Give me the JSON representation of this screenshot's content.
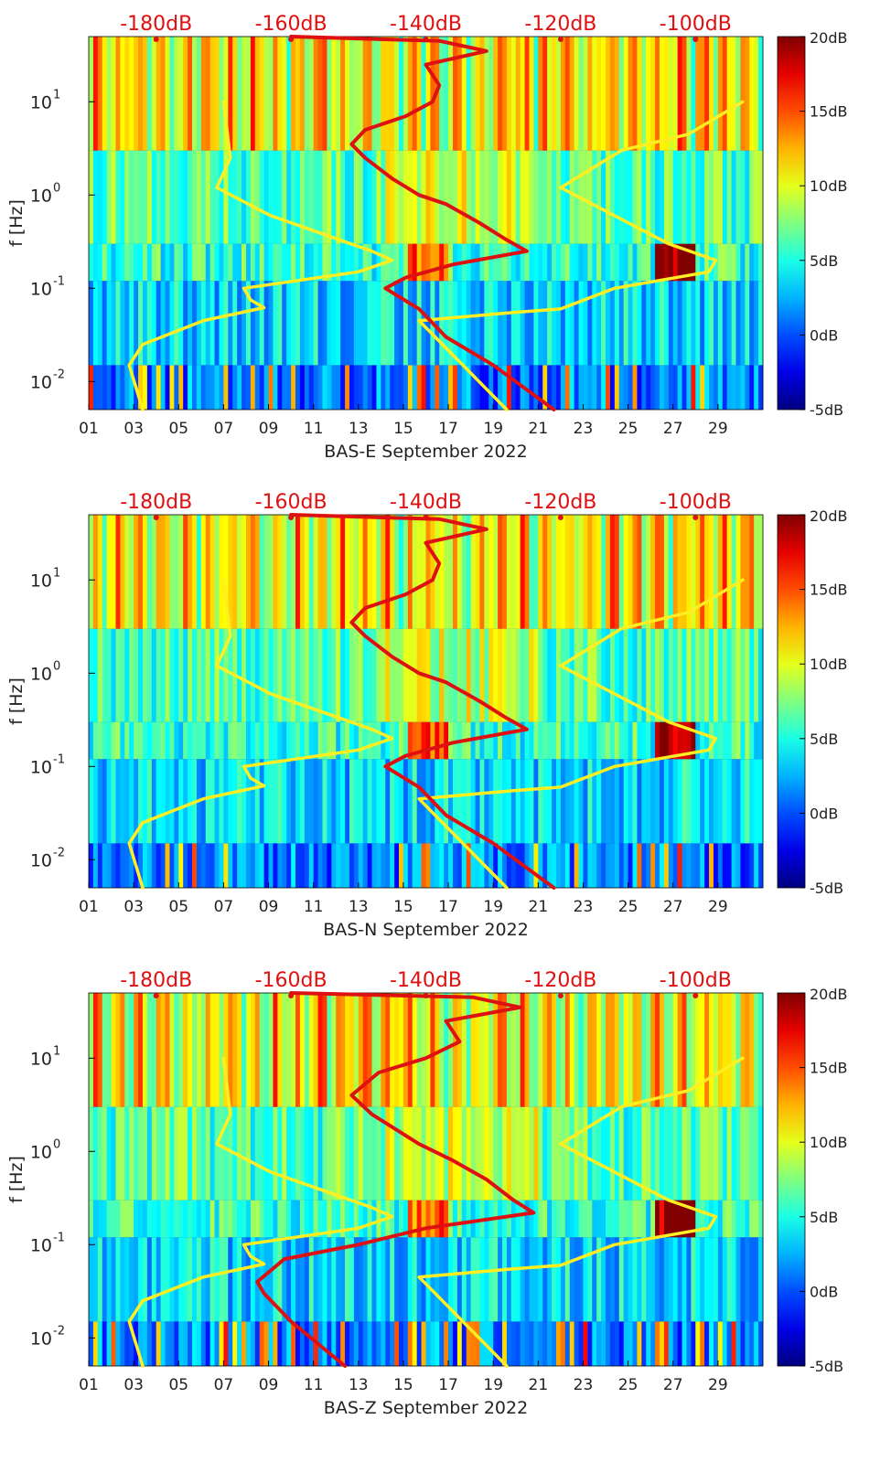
{
  "figure": {
    "background": "#ffffff"
  },
  "chart_data": [
    {
      "type": "heatmap",
      "title": "",
      "xlabel": "BAS-E September 2022",
      "ylabel": "f [Hz]",
      "x_ticks": [
        "01",
        "03",
        "05",
        "07",
        "09",
        "11",
        "13",
        "15",
        "17",
        "19",
        "21",
        "23",
        "25",
        "27",
        "29"
      ],
      "x_range_days": [
        1,
        31
      ],
      "y_scale": "log",
      "y_range_hz": [
        0.005,
        50
      ],
      "y_ticks": [
        {
          "value": 0.01,
          "base": "10",
          "exp": "-2"
        },
        {
          "value": 0.1,
          "base": "10",
          "exp": "-1"
        },
        {
          "value": 1,
          "base": "10",
          "exp": "0"
        },
        {
          "value": 10,
          "base": "10",
          "exp": "1"
        }
      ],
      "top_axis_labels": [
        "-180dB",
        "-160dB",
        "-140dB",
        "-120dB",
        "-100dB"
      ],
      "top_axis_range_db": [
        -190,
        -90
      ],
      "colorbar": {
        "ticks": [
          "-5dB",
          "0dB",
          "5dB",
          "10dB",
          "15dB",
          "20dB"
        ],
        "range_db": [
          -5,
          20
        ],
        "colormap": "jet"
      },
      "overlay_series": [
        {
          "name": "yellow-model-curve",
          "color": "#ffee22",
          "points_db_hz": [
            [
              -182,
              0.005
            ],
            [
              -184,
              0.015
            ],
            [
              -182,
              0.025
            ],
            [
              -173,
              0.045
            ],
            [
              -164,
              0.062
            ],
            [
              -166,
              0.075
            ],
            [
              -167,
              0.1
            ],
            [
              -150,
              0.15
            ],
            [
              -145,
              0.2
            ],
            [
              -148,
              0.25
            ],
            [
              -163,
              0.6
            ],
            [
              -171,
              1.2
            ],
            [
              -169,
              2.5
            ],
            [
              -170,
              10
            ]
          ]
        },
        {
          "name": "yellow-model-curve-right",
          "color": "#ffee22",
          "points_db_hz": [
            [
              -128,
              0.005
            ],
            [
              -141,
              0.045
            ],
            [
              -127,
              0.055
            ],
            [
              -120,
              0.06
            ],
            [
              -112,
              0.1
            ],
            [
              -98,
              0.15
            ],
            [
              -97,
              0.2
            ],
            [
              -104,
              0.3
            ],
            [
              -120,
              1.2
            ],
            [
              -111,
              3
            ],
            [
              -101,
              4.5
            ],
            [
              -93,
              10
            ]
          ]
        },
        {
          "name": "red-measured-psd",
          "color": "#dd1111",
          "points_db_hz": [
            [
              -121,
              0.005
            ],
            [
              -130,
              0.015
            ],
            [
              -137,
              0.03
            ],
            [
              -141,
              0.06
            ],
            [
              -146,
              0.1
            ],
            [
              -143,
              0.13
            ],
            [
              -136,
              0.18
            ],
            [
              -125,
              0.25
            ],
            [
              -128,
              0.33
            ],
            [
              -132,
              0.5
            ],
            [
              -137,
              0.8
            ],
            [
              -141,
              1.0
            ],
            [
              -145,
              1.5
            ],
            [
              -149,
              2.5
            ],
            [
              -151,
              3.5
            ],
            [
              -149,
              5
            ],
            [
              -143,
              7
            ],
            [
              -139,
              10
            ],
            [
              -138,
              15
            ],
            [
              -140,
              25
            ],
            [
              -131,
              35
            ],
            [
              -138,
              45
            ],
            [
              -160,
              50
            ]
          ]
        }
      ]
    },
    {
      "type": "heatmap",
      "title": "",
      "xlabel": "BAS-N September 2022",
      "ylabel": "f [Hz]",
      "x_ticks": [
        "01",
        "03",
        "05",
        "07",
        "09",
        "11",
        "13",
        "15",
        "17",
        "19",
        "21",
        "23",
        "25",
        "27",
        "29"
      ],
      "x_range_days": [
        1,
        31
      ],
      "y_scale": "log",
      "y_range_hz": [
        0.005,
        50
      ],
      "y_ticks": [
        {
          "value": 0.01,
          "base": "10",
          "exp": "-2"
        },
        {
          "value": 0.1,
          "base": "10",
          "exp": "-1"
        },
        {
          "value": 1,
          "base": "10",
          "exp": "0"
        },
        {
          "value": 10,
          "base": "10",
          "exp": "1"
        }
      ],
      "top_axis_labels": [
        "-180dB",
        "-160dB",
        "-140dB",
        "-120dB",
        "-100dB"
      ],
      "top_axis_range_db": [
        -190,
        -90
      ],
      "colorbar": {
        "ticks": [
          "-5dB",
          "0dB",
          "5dB",
          "10dB",
          "15dB",
          "20dB"
        ],
        "range_db": [
          -5,
          20
        ],
        "colormap": "jet"
      },
      "overlay_series": [
        {
          "name": "yellow-model-curve",
          "color": "#ffee22",
          "points_db_hz": [
            [
              -182,
              0.005
            ],
            [
              -184,
              0.015
            ],
            [
              -182,
              0.025
            ],
            [
              -173,
              0.045
            ],
            [
              -164,
              0.062
            ],
            [
              -166,
              0.075
            ],
            [
              -167,
              0.1
            ],
            [
              -150,
              0.15
            ],
            [
              -145,
              0.2
            ],
            [
              -148,
              0.25
            ],
            [
              -163,
              0.6
            ],
            [
              -171,
              1.2
            ],
            [
              -169,
              2.5
            ],
            [
              -170,
              10
            ]
          ]
        },
        {
          "name": "yellow-model-curve-right",
          "color": "#ffee22",
          "points_db_hz": [
            [
              -128,
              0.005
            ],
            [
              -141,
              0.045
            ],
            [
              -127,
              0.055
            ],
            [
              -120,
              0.06
            ],
            [
              -112,
              0.1
            ],
            [
              -98,
              0.15
            ],
            [
              -97,
              0.2
            ],
            [
              -104,
              0.3
            ],
            [
              -120,
              1.2
            ],
            [
              -111,
              3
            ],
            [
              -101,
              4.5
            ],
            [
              -93,
              10
            ]
          ]
        },
        {
          "name": "red-measured-psd",
          "color": "#dd1111",
          "points_db_hz": [
            [
              -121,
              0.005
            ],
            [
              -130,
              0.015
            ],
            [
              -137,
              0.03
            ],
            [
              -141,
              0.06
            ],
            [
              -146,
              0.1
            ],
            [
              -143,
              0.13
            ],
            [
              -136,
              0.18
            ],
            [
              -125,
              0.25
            ],
            [
              -128,
              0.33
            ],
            [
              -132,
              0.5
            ],
            [
              -137,
              0.8
            ],
            [
              -141,
              1.0
            ],
            [
              -145,
              1.5
            ],
            [
              -149,
              2.5
            ],
            [
              -151,
              3.5
            ],
            [
              -149,
              5
            ],
            [
              -143,
              7
            ],
            [
              -139,
              10
            ],
            [
              -138,
              15
            ],
            [
              -140,
              25
            ],
            [
              -131,
              35
            ],
            [
              -138,
              45
            ],
            [
              -160,
              50
            ]
          ]
        }
      ]
    },
    {
      "type": "heatmap",
      "title": "",
      "xlabel": "BAS-Z September 2022",
      "ylabel": "f [Hz]",
      "x_ticks": [
        "01",
        "03",
        "05",
        "07",
        "09",
        "11",
        "13",
        "15",
        "17",
        "19",
        "21",
        "23",
        "25",
        "27",
        "29"
      ],
      "x_range_days": [
        1,
        31
      ],
      "y_scale": "log",
      "y_range_hz": [
        0.005,
        50
      ],
      "y_ticks": [
        {
          "value": 0.01,
          "base": "10",
          "exp": "-2"
        },
        {
          "value": 0.1,
          "base": "10",
          "exp": "-1"
        },
        {
          "value": 1,
          "base": "10",
          "exp": "0"
        },
        {
          "value": 10,
          "base": "10",
          "exp": "1"
        }
      ],
      "top_axis_labels": [
        "-180dB",
        "-160dB",
        "-140dB",
        "-120dB",
        "-100dB"
      ],
      "top_axis_range_db": [
        -190,
        -90
      ],
      "colorbar": {
        "ticks": [
          "-5dB",
          "0dB",
          "5dB",
          "10dB",
          "15dB",
          "20dB"
        ],
        "range_db": [
          -5,
          20
        ],
        "colormap": "jet"
      },
      "overlay_series": [
        {
          "name": "yellow-model-curve",
          "color": "#ffee22",
          "points_db_hz": [
            [
              -182,
              0.005
            ],
            [
              -184,
              0.015
            ],
            [
              -182,
              0.025
            ],
            [
              -173,
              0.045
            ],
            [
              -164,
              0.062
            ],
            [
              -166,
              0.075
            ],
            [
              -167,
              0.1
            ],
            [
              -150,
              0.15
            ],
            [
              -145,
              0.2
            ],
            [
              -148,
              0.25
            ],
            [
              -163,
              0.6
            ],
            [
              -171,
              1.2
            ],
            [
              -169,
              2.5
            ],
            [
              -170,
              10
            ]
          ]
        },
        {
          "name": "yellow-model-curve-right",
          "color": "#ffee22",
          "points_db_hz": [
            [
              -128,
              0.005
            ],
            [
              -141,
              0.045
            ],
            [
              -127,
              0.055
            ],
            [
              -120,
              0.06
            ],
            [
              -112,
              0.1
            ],
            [
              -98,
              0.15
            ],
            [
              -97,
              0.2
            ],
            [
              -104,
              0.3
            ],
            [
              -120,
              1.2
            ],
            [
              -111,
              3
            ],
            [
              -101,
              4.5
            ],
            [
              -93,
              10
            ]
          ]
        },
        {
          "name": "red-measured-psd",
          "color": "#dd1111",
          "points_db_hz": [
            [
              -152,
              0.005
            ],
            [
              -160,
              0.015
            ],
            [
              -164,
              0.03
            ],
            [
              -165,
              0.04
            ],
            [
              -161,
              0.07
            ],
            [
              -150,
              0.1
            ],
            [
              -140,
              0.15
            ],
            [
              -124,
              0.22
            ],
            [
              -127,
              0.3
            ],
            [
              -131,
              0.5
            ],
            [
              -136,
              0.8
            ],
            [
              -141,
              1.2
            ],
            [
              -148,
              2.5
            ],
            [
              -151,
              4
            ],
            [
              -147,
              7
            ],
            [
              -140,
              10
            ],
            [
              -135,
              15
            ],
            [
              -137,
              25
            ],
            [
              -126,
              35
            ],
            [
              -133,
              45
            ],
            [
              -160,
              50
            ]
          ]
        }
      ]
    }
  ]
}
